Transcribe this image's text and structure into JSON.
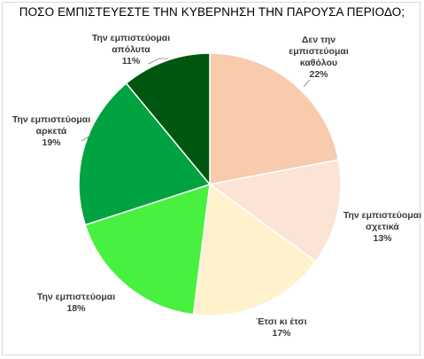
{
  "chart_data": {
    "type": "pie",
    "title": "ΠΟΣΟ ΕΜΠΙΣΤΕΥΕΣΤΕ ΤΗΝ ΚΥΒΕΡΝΗΣΗ ΤΗΝ ΠΑΡΟΥΣΑ ΠΕΡΙΟΔΟ;",
    "slices": [
      {
        "label": "Δεν την εμπιστεύομαι καθόλου",
        "value": 22,
        "percent_label": "22%",
        "color": "#f8cbad"
      },
      {
        "label": "Την εμπιστεύομαι σχετικά",
        "value": 13,
        "percent_label": "13%",
        "color": "#fbe4d5"
      },
      {
        "label": "Έτσι κι έτσι",
        "value": 17,
        "percent_label": "17%",
        "color": "#fff2cc"
      },
      {
        "label": "Την εμπιστεύομαι",
        "value": 18,
        "percent_label": "18%",
        "color": "#48f13f"
      },
      {
        "label": "Την εμπιστεύομαι αρκετά",
        "value": 19,
        "percent_label": "19%",
        "color": "#00a33f"
      },
      {
        "label": "Την εμπιστεύομαι απόλυτα",
        "value": 11,
        "percent_label": "11%",
        "color": "#00570f"
      }
    ],
    "start_angle_deg": 0,
    "direction": "clockwise",
    "legend": "none"
  }
}
